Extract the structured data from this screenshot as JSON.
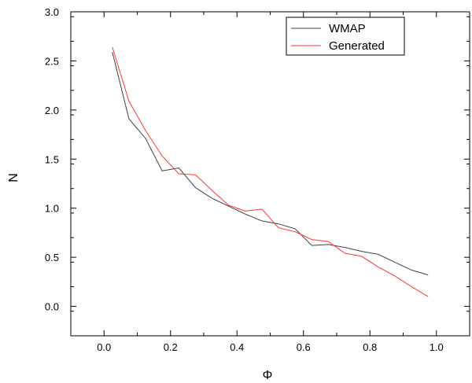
{
  "chart_data": {
    "type": "line",
    "title": "",
    "xlabel": "Φ",
    "ylabel": "N",
    "xlim": [
      -0.1,
      1.1
    ],
    "ylim": [
      -0.3,
      3.0
    ],
    "x_ticks": [
      0.0,
      0.2,
      0.4,
      0.6,
      0.8,
      1.0
    ],
    "x_tick_labels": [
      "0.0",
      "0.2",
      "0.4",
      "0.6",
      "0.8",
      "1.0"
    ],
    "y_ticks": [
      0.0,
      0.5,
      1.0,
      1.5,
      2.0,
      2.5,
      3.0
    ],
    "y_tick_labels": [
      "0.0",
      "0.5",
      "1.0",
      "1.5",
      "2.0",
      "2.5",
      "3.0"
    ],
    "grid": false,
    "legend_position": "top-right",
    "series": [
      {
        "name": "WMAP",
        "color": "#404040",
        "x": [
          0.025,
          0.075,
          0.125,
          0.175,
          0.225,
          0.275,
          0.325,
          0.375,
          0.425,
          0.475,
          0.525,
          0.575,
          0.625,
          0.675,
          0.725,
          0.775,
          0.825,
          0.875,
          0.925,
          0.975
        ],
        "y": [
          2.59,
          1.91,
          1.71,
          1.38,
          1.41,
          1.21,
          1.1,
          1.02,
          0.94,
          0.87,
          0.84,
          0.79,
          0.62,
          0.63,
          0.6,
          0.56,
          0.53,
          0.45,
          0.37,
          0.32
        ]
      },
      {
        "name": "Generated",
        "color": "#ff3333",
        "x": [
          0.025,
          0.075,
          0.125,
          0.175,
          0.225,
          0.275,
          0.325,
          0.375,
          0.425,
          0.475,
          0.525,
          0.575,
          0.625,
          0.675,
          0.725,
          0.775,
          0.825,
          0.875,
          0.925,
          0.975
        ],
        "y": [
          2.64,
          2.09,
          1.79,
          1.53,
          1.35,
          1.34,
          1.18,
          1.03,
          0.97,
          0.99,
          0.8,
          0.76,
          0.68,
          0.66,
          0.54,
          0.51,
          0.4,
          0.31,
          0.2,
          0.1
        ]
      }
    ]
  }
}
